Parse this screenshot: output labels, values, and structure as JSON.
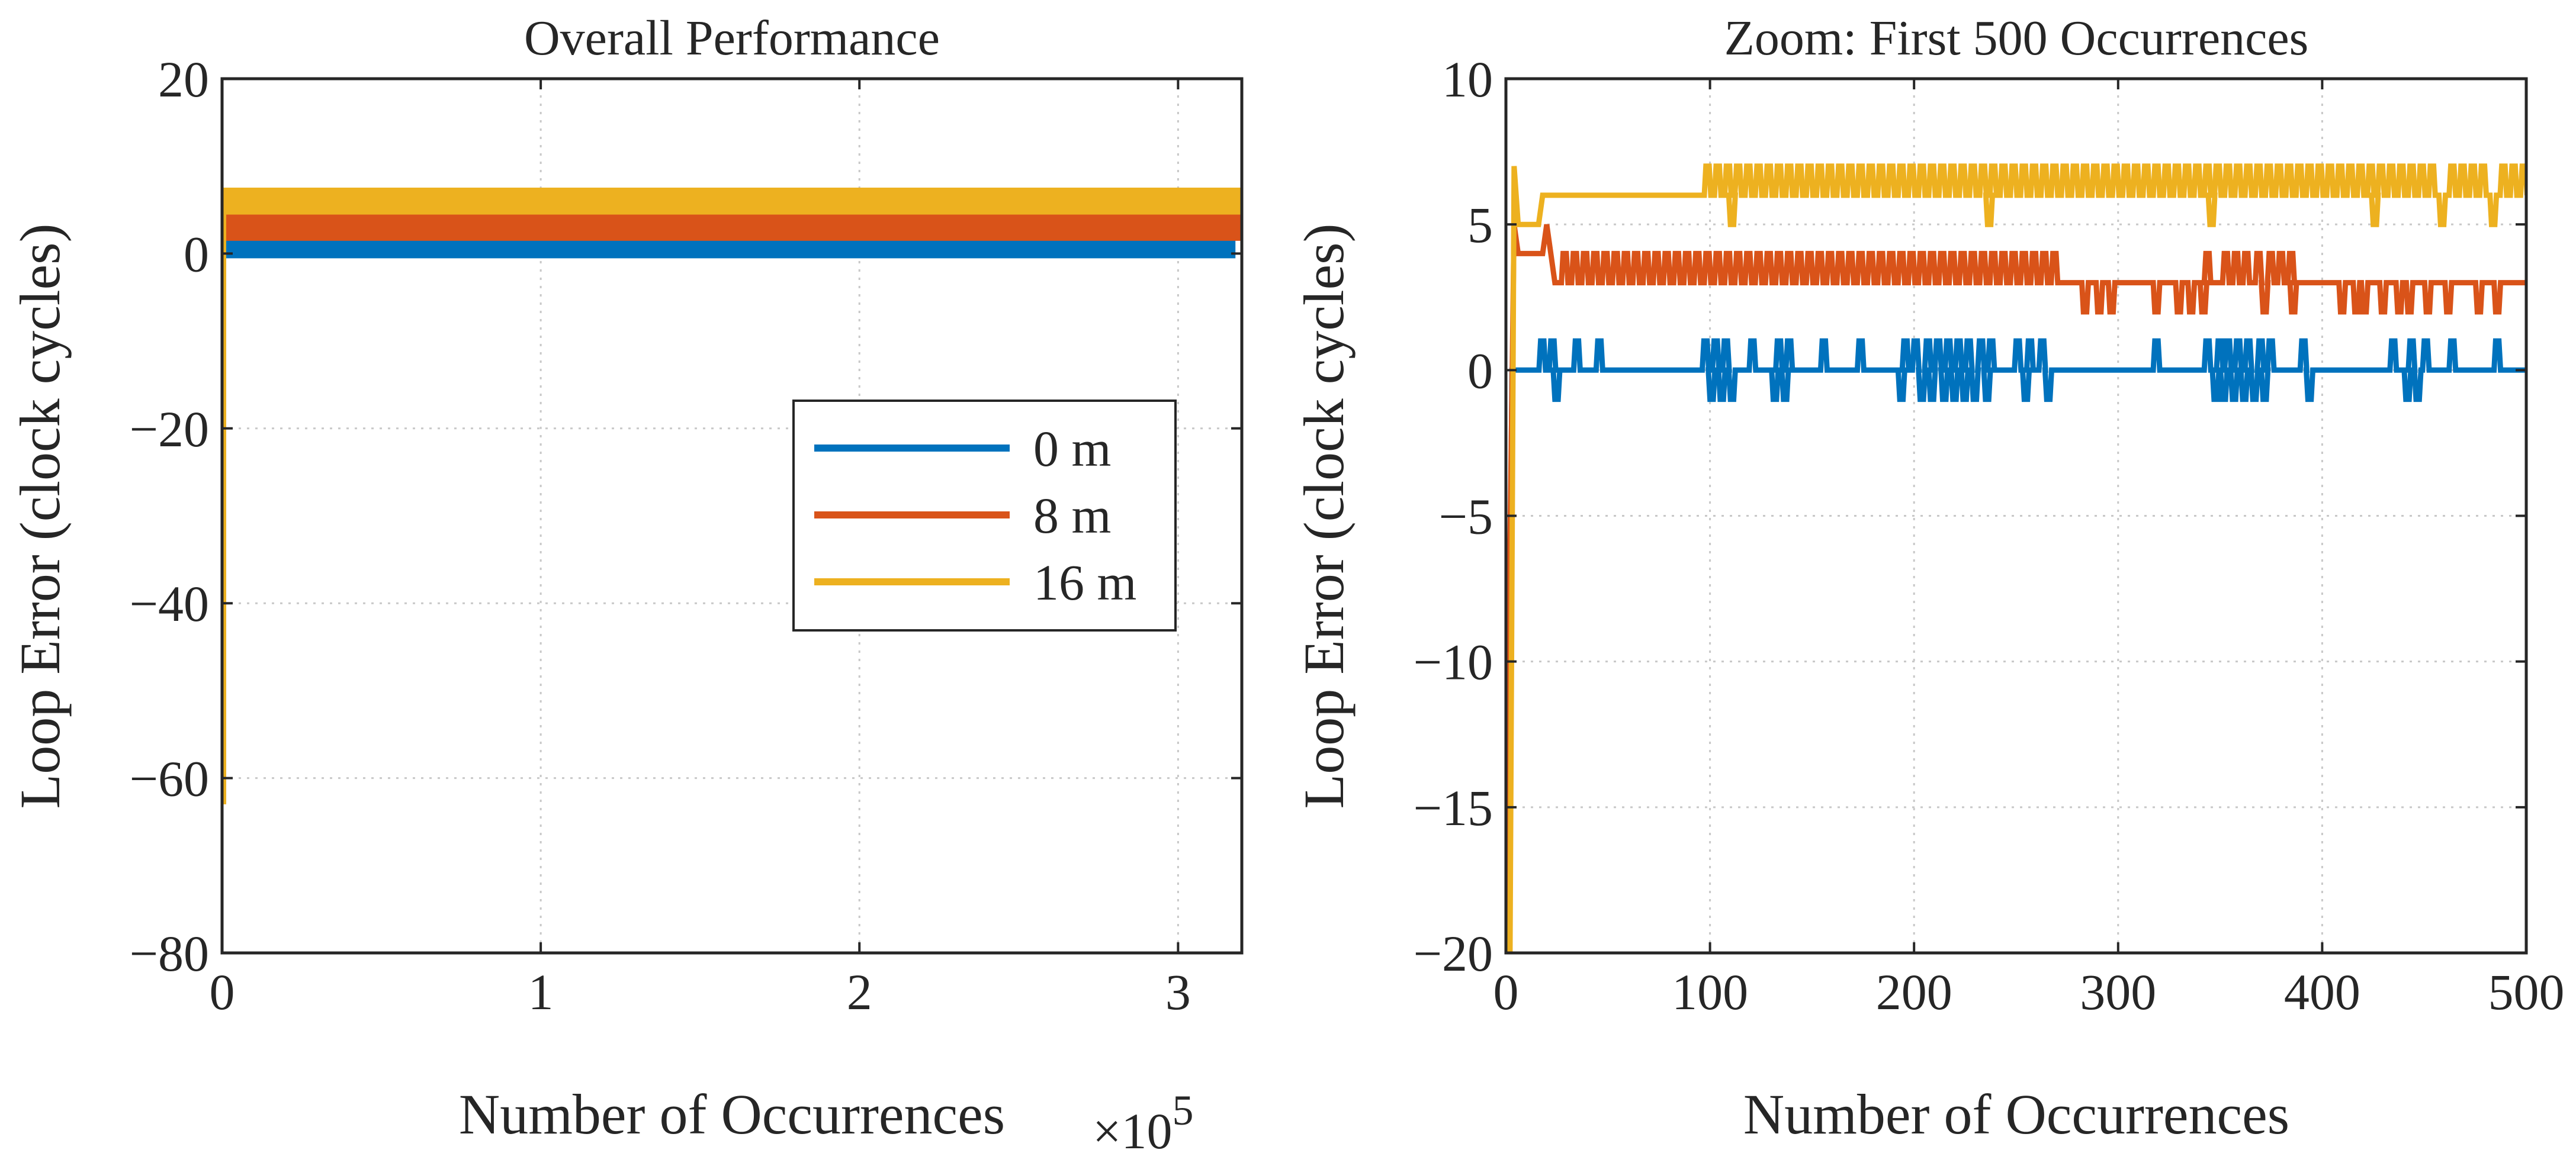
{
  "chart_data": [
    {
      "type": "line",
      "title": "Overall Performance",
      "xlabel": "Number of Occurrences",
      "ylabel": "Loop Error (clock cycles)",
      "x_multiplier_label": "×10",
      "x_multiplier_exp": "5",
      "xlim": [
        0,
        320000
      ],
      "ylim": [
        -80,
        20
      ],
      "xticks": [
        0,
        100000,
        200000,
        300000
      ],
      "xtick_labels": [
        "0",
        "1",
        "2",
        "3"
      ],
      "yticks": [
        -80,
        -60,
        -40,
        -20,
        0,
        20
      ],
      "ytick_labels": [
        "−80",
        "−60",
        "−40",
        "−20",
        "0",
        "20"
      ],
      "grid": true,
      "legend": {
        "position": "center-right",
        "entries": [
          "0 m",
          "8 m",
          "16 m"
        ]
      },
      "series": [
        {
          "name": "0 m",
          "color": "#0072BD",
          "x": [
            0,
            1000,
            318000
          ],
          "y_low": [
            0,
            0,
            0
          ],
          "y_high": [
            1,
            1,
            1
          ],
          "initial_min": 0
        },
        {
          "name": "8 m",
          "color": "#D95319",
          "x": [
            0,
            1000,
            320000
          ],
          "y_low": [
            2,
            2,
            2
          ],
          "y_high": [
            4,
            4,
            4
          ],
          "initial_min": 2
        },
        {
          "name": "16 m",
          "color": "#EDB120",
          "x": [
            0,
            1000,
            320000
          ],
          "y_low": [
            5,
            5,
            5
          ],
          "y_high": [
            7,
            7,
            7
          ],
          "initial_min": -63
        }
      ]
    },
    {
      "type": "line",
      "title": "Zoom: First 500 Occurrences",
      "xlabel": "Number of Occurrences",
      "ylabel": "Loop Error (clock cycles)",
      "xlim": [
        0,
        500
      ],
      "ylim": [
        -20,
        10
      ],
      "xticks": [
        0,
        100,
        200,
        300,
        400,
        500
      ],
      "xtick_labels": [
        "0",
        "100",
        "200",
        "300",
        "400",
        "500"
      ],
      "yticks": [
        -20,
        -15,
        -10,
        -5,
        0,
        5,
        10
      ],
      "ytick_labels": [
        "−20",
        "−15",
        "−10",
        "−5",
        "0",
        "5",
        "10"
      ],
      "grid": true,
      "series": [
        {
          "name": "0 m",
          "color": "#0072BD",
          "start": {
            "x": [
              0,
              1,
              2,
              3
            ],
            "y": [
              -20,
              -20,
              -8,
              0
            ]
          },
          "base": 0,
          "spikes_up": [
            17,
            22,
            34,
            45,
            97,
            102,
            107,
            120,
            133,
            138,
            155,
            173,
            195,
            200,
            206,
            211,
            216,
            221,
            226,
            232,
            237,
            250,
            256,
            262,
            318,
            343,
            349,
            353,
            358,
            363,
            369,
            374,
            390,
            434,
            443,
            450,
            463,
            485
          ],
          "spikes_down": [
            24,
            100,
            105,
            110,
            131,
            136,
            193,
            203,
            208,
            214,
            219,
            224,
            229,
            235,
            254,
            265,
            347,
            351,
            356,
            361,
            366,
            371,
            393,
            441,
            446
          ]
        },
        {
          "name": "8 m",
          "color": "#D95319",
          "start": {
            "x": [
              0,
              2,
              4,
              6,
              10,
              18,
              20,
              24
            ],
            "y": [
              -20,
              -6,
              5,
              4,
              4,
              4,
              5,
              3
            ]
          },
          "base_segments": [
            {
              "x0": 24,
              "x1": 282,
              "y": 3
            },
            {
              "x0": 282,
              "x1": 500,
              "y": 3
            }
          ],
          "band_up_start": 28,
          "band_up_end": 272,
          "band_up_step": 5,
          "band_value": 4,
          "spikes_up": [
            343,
            352,
            357,
            362,
            368,
            374,
            379,
            384
          ],
          "spikes_down": [
            283,
            290,
            296,
            318,
            329,
            335,
            341,
            371,
            385,
            409,
            416,
            420,
            429,
            437,
            442,
            451,
            461,
            476,
            485
          ]
        },
        {
          "name": "16 m",
          "color": "#EDB120",
          "start": {
            "x": [
              0,
              2,
              4,
              6,
              8,
              12,
              14,
              16,
              18,
              95
            ],
            "y": [
              -20,
              -20,
              7,
              5,
              5,
              5,
              5,
              5,
              6,
              6
            ]
          },
          "base": 6,
          "band_up_start": 98,
          "band_up_end": 500,
          "band_up_step": 5,
          "band_value": 7,
          "spikes_down": [
            110,
            236,
            345,
            425,
            458,
            483
          ]
        }
      ]
    }
  ]
}
